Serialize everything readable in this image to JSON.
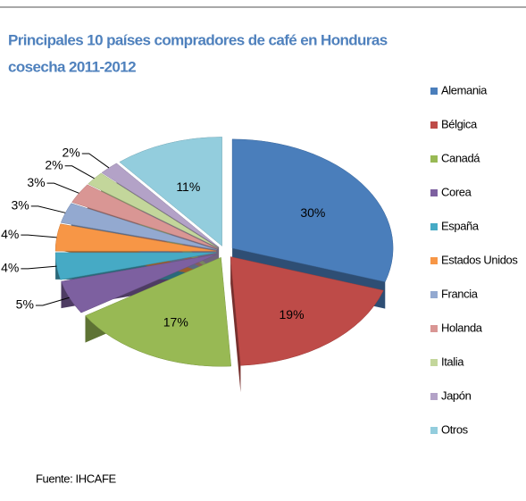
{
  "chart_data": {
    "type": "pie3d",
    "title": "Principales 10 países compradores de café en Honduras",
    "subtitle": "cosecha 2011-2012",
    "source": "Fuente: IHCAFE",
    "series": [
      {
        "name": "Alemania",
        "color": "#4a7ebb"
      },
      {
        "name": "Bélgica",
        "color": "#be4b48"
      },
      {
        "name": "Canadá",
        "color": "#98b954"
      },
      {
        "name": "Corea",
        "color": "#7d60a0"
      },
      {
        "name": "España",
        "color": "#46aac5"
      },
      {
        "name": "Estados Unidos",
        "color": "#f79646"
      },
      {
        "name": "Francia",
        "color": "#93a9d0"
      },
      {
        "name": "Holanda",
        "color": "#d99694"
      },
      {
        "name": "Italia",
        "color": "#c3d69b"
      },
      {
        "name": "Japón",
        "color": "#b3a2c7"
      },
      {
        "name": "Otros",
        "color": "#93cddd"
      }
    ],
    "values": [
      30,
      19,
      17,
      5,
      4,
      4,
      3,
      3,
      2,
      2,
      11
    ],
    "value_labels": [
      "30%",
      "19%",
      "17%",
      "5%",
      "4%",
      "4%",
      "3%",
      "3%",
      "2%",
      "2%",
      "11%"
    ],
    "legend": "right"
  }
}
